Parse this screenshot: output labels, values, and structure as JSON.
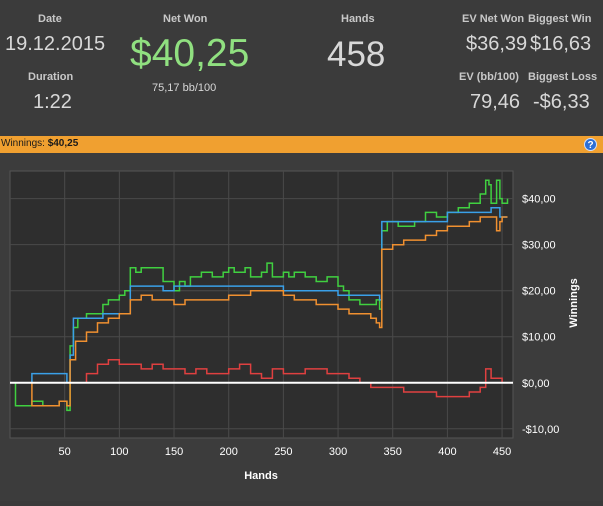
{
  "stats": {
    "date_label": "Date",
    "date_value": "19.12.2015",
    "duration_label": "Duration",
    "duration_value": "1:22",
    "net_won_label": "Net Won",
    "net_won_value": "$40,25",
    "net_won_sub": "75,17 bb/100",
    "hands_label": "Hands",
    "hands_value": "458",
    "ev_net_won_label": "EV Net Won",
    "ev_net_won_value": "$36,39",
    "biggest_win_label": "Biggest Win",
    "biggest_win_value": "$16,63",
    "ev_bb_label": "EV (bb/100)",
    "ev_bb_value": "79,46",
    "biggest_loss_label": "Biggest Loss",
    "biggest_loss_value": "-$6,33"
  },
  "winnings_bar": {
    "label": "Winnings:",
    "value": "$40,25",
    "help_icon": "?"
  },
  "colors": {
    "net_won_green": "#90e080",
    "orange_bar": "#f0a030",
    "help_blue": "#2d6fd6"
  },
  "chart_data": {
    "type": "line",
    "xlabel": "Hands",
    "ylabel": "Winnings",
    "xlim": [
      0,
      460
    ],
    "ylim": [
      -12,
      46
    ],
    "x_ticks": [
      50,
      100,
      150,
      200,
      250,
      300,
      350,
      400,
      450
    ],
    "y_ticks": [
      -10,
      0,
      10,
      20,
      30,
      40
    ],
    "y_tick_labels": [
      "-$10,00",
      "$0,00",
      "$10,00",
      "$20,00",
      "$30,00",
      "$40,00"
    ],
    "grid": true,
    "zero_line": true,
    "series": [
      {
        "color": "#40d040",
        "x": [
          0,
          5,
          20,
          30,
          45,
          52,
          55,
          58,
          62,
          70,
          75,
          85,
          90,
          100,
          105,
          110,
          115,
          120,
          130,
          140,
          150,
          155,
          160,
          165,
          175,
          185,
          195,
          200,
          205,
          215,
          220,
          230,
          235,
          240,
          250,
          255,
          260,
          270,
          280,
          290,
          300,
          305,
          310,
          320,
          330,
          335,
          338,
          340,
          345,
          355,
          360,
          370,
          380,
          390,
          400,
          410,
          420,
          430,
          435,
          438,
          440,
          445,
          448,
          450,
          455
        ],
        "y": [
          0,
          -5,
          -4,
          -5,
          -4,
          -6,
          8,
          12,
          14,
          15,
          15,
          17,
          18,
          19,
          20,
          25,
          24,
          25,
          25,
          22,
          20,
          22,
          21,
          23,
          24,
          23,
          24,
          25,
          24,
          25,
          23,
          24,
          26,
          23,
          24,
          23,
          24,
          23,
          22,
          23,
          21,
          20,
          18,
          17,
          17,
          18,
          16,
          33,
          35,
          34,
          34,
          35,
          37,
          36,
          37,
          38,
          39,
          41,
          44,
          43,
          39,
          44,
          40,
          39,
          40
        ]
      },
      {
        "color": "#3aa0e8",
        "x": [
          0,
          20,
          40,
          52,
          55,
          58,
          70,
          85,
          100,
          110,
          130,
          140,
          145,
          150,
          160,
          200,
          220,
          250,
          300,
          320,
          335,
          338,
          340,
          350,
          380,
          395,
          400,
          420,
          430,
          435,
          440,
          448,
          450,
          455
        ],
        "y": [
          0,
          2,
          2,
          0,
          6,
          14,
          14,
          15,
          15,
          21,
          21,
          20,
          20,
          21,
          21,
          21,
          21,
          20,
          19,
          19,
          19,
          18,
          35,
          35,
          35,
          35,
          37,
          37,
          37,
          37,
          38,
          36,
          36,
          36
        ]
      },
      {
        "color": "#f09030",
        "x": [
          0,
          20,
          30,
          45,
          52,
          55,
          60,
          70,
          80,
          90,
          100,
          105,
          110,
          120,
          130,
          140,
          150,
          160,
          180,
          200,
          220,
          240,
          250,
          260,
          280,
          300,
          310,
          320,
          330,
          335,
          338,
          340,
          350,
          360,
          380,
          390,
          400,
          410,
          420,
          430,
          435,
          440,
          445,
          448,
          450,
          455
        ],
        "y": [
          0,
          -5,
          -5,
          -4,
          -5,
          5,
          9,
          11,
          13,
          14,
          15,
          15,
          18,
          19,
          18,
          18,
          17,
          18,
          18,
          19,
          20,
          20,
          19,
          18,
          17,
          16,
          15,
          15,
          14,
          13,
          12,
          29,
          30,
          31,
          32,
          33,
          34,
          34,
          35,
          36,
          36,
          36,
          33,
          35,
          36,
          36
        ]
      },
      {
        "color": "#e04040",
        "x": [
          0,
          20,
          40,
          55,
          60,
          70,
          80,
          90,
          100,
          110,
          120,
          130,
          140,
          150,
          160,
          170,
          180,
          190,
          200,
          210,
          220,
          230,
          240,
          250,
          260,
          270,
          280,
          290,
          300,
          310,
          320,
          330,
          340,
          350,
          360,
          370,
          380,
          390,
          400,
          410,
          420,
          430,
          435,
          440,
          445,
          450,
          455
        ],
        "y": [
          0,
          0,
          0,
          0,
          0,
          2,
          4,
          5,
          4,
          4,
          3,
          4,
          3,
          3,
          2,
          3,
          2,
          2,
          3,
          4,
          2,
          1,
          3,
          2,
          2,
          3,
          3,
          2,
          2,
          1,
          0,
          -1,
          -1,
          -1,
          -2,
          -2,
          -2,
          -3,
          -3,
          -3,
          -2,
          -1,
          3,
          1,
          1,
          0,
          0
        ]
      },
      {
        "color": "#ffffff",
        "x": [
          0,
          460
        ],
        "y": [
          0,
          0
        ]
      }
    ]
  }
}
